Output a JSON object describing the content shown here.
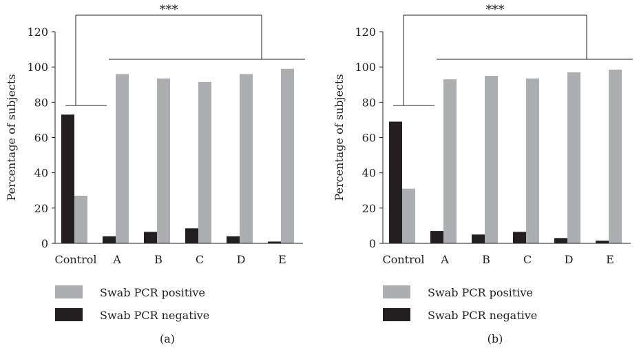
{
  "figure": {
    "colors": {
      "positive": "#adaeb2",
      "negative": "#231f20",
      "axis": "#222222"
    }
  },
  "chart_data": [
    {
      "type": "bar",
      "panel_label": "(a)",
      "ylabel": "Percentage of subjects",
      "xlabel": "",
      "ylim": [
        0,
        120
      ],
      "yticks": [
        "0",
        "20",
        "40",
        "60",
        "80",
        "100",
        "120"
      ],
      "categories": [
        "Control",
        "A",
        "B",
        "C",
        "D",
        "E"
      ],
      "series": [
        {
          "name": "Swab PCR negative",
          "color": "#231f20",
          "values": [
            73,
            4,
            6.5,
            8.5,
            4,
            1
          ]
        },
        {
          "name": "Swab PCR positive",
          "color": "#adaeb2",
          "values": [
            27,
            96,
            93.5,
            91.5,
            96,
            99
          ]
        }
      ],
      "annotation": "***",
      "legend": [
        "Swab PCR positive",
        "Swab PCR negative"
      ],
      "legend_position": "bottom-left"
    },
    {
      "type": "bar",
      "panel_label": "(b)",
      "ylabel": "Percentage of subjects",
      "xlabel": "",
      "ylim": [
        0,
        120
      ],
      "yticks": [
        "0",
        "20",
        "40",
        "60",
        "80",
        "100",
        "120"
      ],
      "categories": [
        "Control",
        "A",
        "B",
        "C",
        "D",
        "E"
      ],
      "series": [
        {
          "name": "Swab PCR negative",
          "color": "#231f20",
          "values": [
            69,
            7,
            5,
            6.5,
            3,
            1.5
          ]
        },
        {
          "name": "Swab PCR positive",
          "color": "#adaeb2",
          "values": [
            31,
            93,
            95,
            93.5,
            97,
            98.5
          ]
        }
      ],
      "annotation": "***",
      "legend": [
        "Swab PCR positive",
        "Swab PCR negative"
      ],
      "legend_position": "bottom-left"
    }
  ]
}
